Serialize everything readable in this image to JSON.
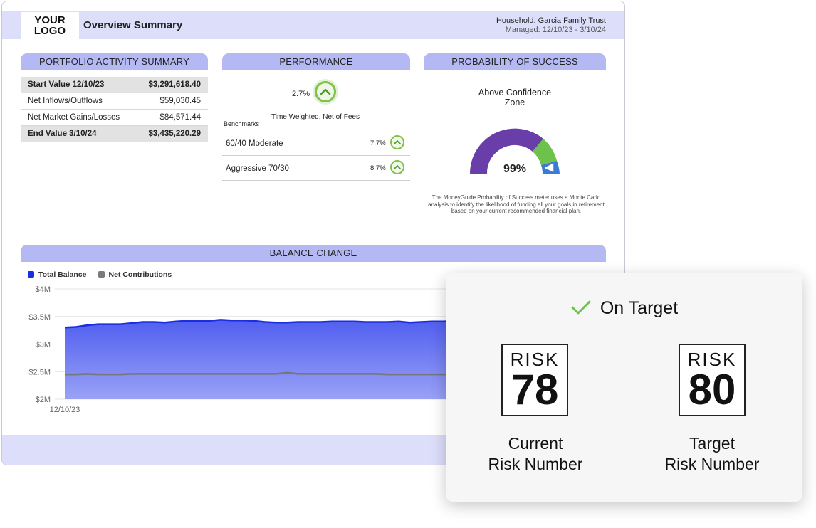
{
  "header": {
    "logo_line1": "YOUR",
    "logo_line2": "LOGO",
    "title": "Overview Summary",
    "household": "Household: Garcia Family Trust",
    "managed": "Managed: 12/10/23 - 3/10/24"
  },
  "portfolio_activity": {
    "title": "PORTFOLIO ACTIVITY SUMMARY",
    "rows": [
      {
        "label": "Start Value 12/10/23",
        "value": "$3,291,618.40"
      },
      {
        "label": "Net Inflows/Outflows",
        "value": "$59,030.45"
      },
      {
        "label": "Net Market Gains/Losses",
        "value": "$84,571.44"
      },
      {
        "label": "End Value 3/10/24",
        "value": "$3,435,220.29"
      }
    ]
  },
  "performance": {
    "title": "PERFORMANCE",
    "value": "2.7%",
    "subtitle": "Time Weighted, Net of Fees",
    "benchmarks_label": "Benchmarks",
    "benchmarks": [
      {
        "name": "60/40 Moderate",
        "value": "7.7%"
      },
      {
        "name": "Aggressive 70/30",
        "value": "8.7%"
      }
    ]
  },
  "probability": {
    "title": "PROBABILITY OF SUCCESS",
    "zone_line1": "Above Confidence",
    "zone_line2": "Zone",
    "value": "99%",
    "description": "The MoneyGuide Probability of Success meter uses a Monte Carlo analysis to identify the likelihood of funding all your goals in retirement based on your current recommended financial plan."
  },
  "balance_change": {
    "title": "BALANCE CHANGE",
    "legend": [
      {
        "name": "Total Balance",
        "color": "#1a2ee0"
      },
      {
        "name": "Net Contributions",
        "color": "#7a7a7a"
      }
    ]
  },
  "chart_data": {
    "type": "area",
    "title": "BALANCE CHANGE",
    "x_start_label": "12/10/23",
    "yticks": [
      "$4M",
      "$3.5M",
      "$3M",
      "$2.5M",
      "$2M"
    ],
    "ylim": [
      2000000,
      4000000
    ],
    "series": [
      {
        "name": "Total Balance",
        "color": "#1a2ee0",
        "values": [
          3.3,
          3.31,
          3.34,
          3.36,
          3.36,
          3.36,
          3.38,
          3.4,
          3.4,
          3.39,
          3.41,
          3.42,
          3.42,
          3.42,
          3.44,
          3.43,
          3.43,
          3.42,
          3.4,
          3.39,
          3.39,
          3.4,
          3.4,
          3.4,
          3.41,
          3.41,
          3.41,
          3.4,
          3.4,
          3.4,
          3.41,
          3.39,
          3.4,
          3.41,
          3.41,
          3.42,
          3.43,
          3.44,
          3.44,
          3.43,
          3.43,
          3.44,
          3.45,
          3.46,
          3.46,
          3.47,
          3.47,
          3.46,
          3.44
        ]
      },
      {
        "name": "Net Contributions",
        "color": "#7a7a7a",
        "values": [
          2.45,
          2.45,
          2.46,
          2.45,
          2.45,
          2.45,
          2.46,
          2.46,
          2.46,
          2.46,
          2.46,
          2.46,
          2.46,
          2.46,
          2.46,
          2.46,
          2.46,
          2.46,
          2.46,
          2.46,
          2.48,
          2.46,
          2.46,
          2.46,
          2.46,
          2.46,
          2.46,
          2.46,
          2.46,
          2.45,
          2.45,
          2.45,
          2.45,
          2.45,
          2.45,
          2.45,
          2.45,
          2.45,
          2.45,
          2.45,
          2.45,
          2.45,
          2.45,
          2.45,
          2.45,
          2.45,
          2.45,
          2.45,
          2.45
        ]
      }
    ]
  },
  "gauge": {
    "value_percent": 99,
    "colors": {
      "low": "#6a3ea8",
      "mid": "#6cc24a",
      "high": "#3a7bd5"
    }
  },
  "risk_card": {
    "status": "On Target",
    "check_color": "#6cc24a",
    "risk_word": "RISK",
    "current": {
      "number": "78",
      "caption_line1": "Current",
      "caption_line2": "Risk Number"
    },
    "target": {
      "number": "80",
      "caption_line1": "Target",
      "caption_line2": "Risk Number"
    }
  }
}
